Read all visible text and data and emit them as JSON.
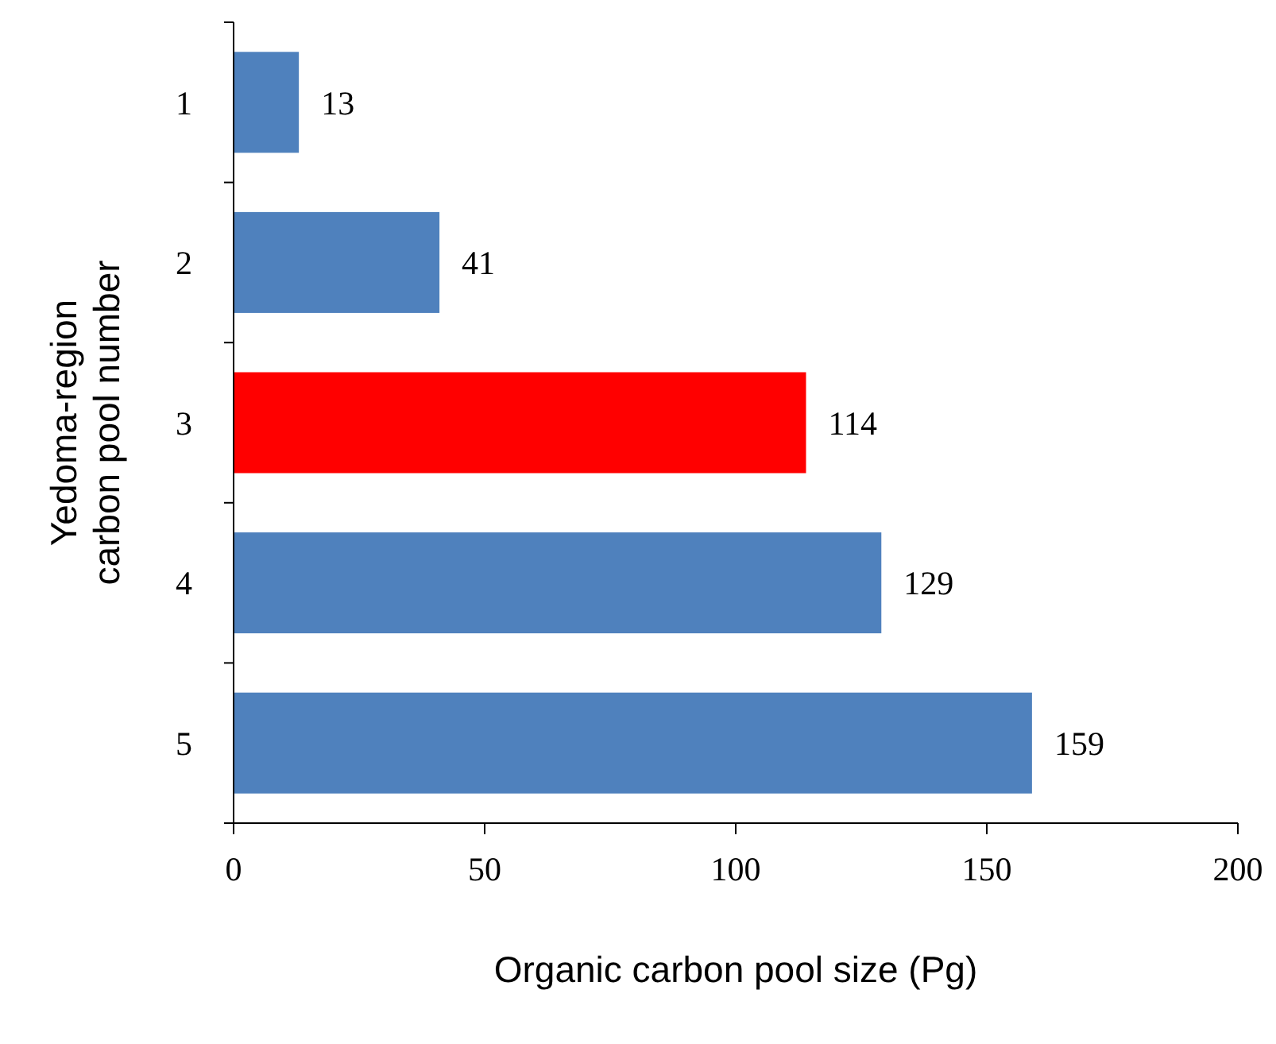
{
  "chart_data": {
    "type": "bar",
    "orientation": "horizontal",
    "categories": [
      "1",
      "2",
      "3",
      "4",
      "5"
    ],
    "values": [
      13,
      41,
      114,
      129,
      159
    ],
    "colors": [
      "#4f81bd",
      "#4f81bd",
      "#ff0000",
      "#4f81bd",
      "#4f81bd"
    ],
    "xlim": [
      0,
      200
    ],
    "xticks": [
      0,
      50,
      100,
      150,
      200
    ],
    "data_labels": true,
    "xlabel": "Organic carbon pool size (Pg)",
    "ylabel": "Yedoma-region carbon pool number"
  }
}
